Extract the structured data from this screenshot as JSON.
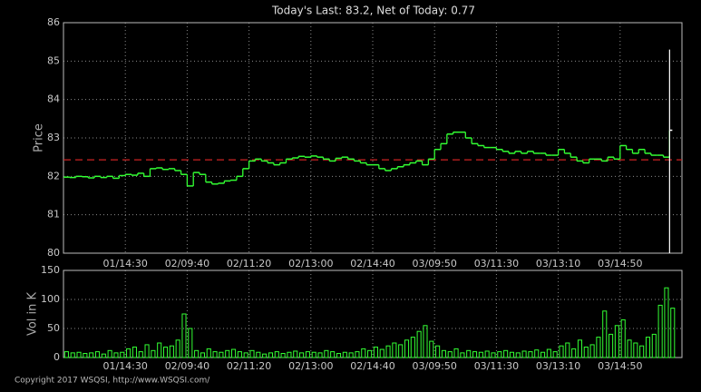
{
  "chart_data": [
    {
      "type": "step",
      "title": "Today's Last: 83.2,  Net of Today: 0.77",
      "ylabel": "Price",
      "ylim": [
        80,
        86
      ],
      "yticks": [
        80,
        81,
        82,
        83,
        84,
        85,
        86
      ],
      "xlim": [
        0,
        100
      ],
      "xticks": [
        {
          "value": 10,
          "label": "01/14:30"
        },
        {
          "value": 20,
          "label": "02/09:40"
        },
        {
          "value": 30,
          "label": "02/11:20"
        },
        {
          "value": 40,
          "label": "02/13:00"
        },
        {
          "value": 50,
          "label": "02/14:40"
        },
        {
          "value": 60,
          "label": "03/09:50"
        },
        {
          "value": 70,
          "label": "03/11:30"
        },
        {
          "value": 80,
          "label": "03/13:10"
        },
        {
          "value": 90,
          "label": "03/14:50"
        }
      ],
      "grid": true,
      "color": "#33ff33",
      "values": [
        81.98,
        81.97,
        82.0,
        81.99,
        81.96,
        82.0,
        81.97,
        82.0,
        81.95,
        82.02,
        82.05,
        82.03,
        82.08,
        82.0,
        82.2,
        82.22,
        82.18,
        82.2,
        82.15,
        82.05,
        81.75,
        82.1,
        82.05,
        81.85,
        81.8,
        81.82,
        81.88,
        81.9,
        82.0,
        82.2,
        82.4,
        82.45,
        82.4,
        82.35,
        82.3,
        82.35,
        82.45,
        82.48,
        82.52,
        82.5,
        82.53,
        82.5,
        82.45,
        82.4,
        82.47,
        82.5,
        82.45,
        82.4,
        82.35,
        82.3,
        82.3,
        82.2,
        82.15,
        82.2,
        82.25,
        82.3,
        82.35,
        82.4,
        82.3,
        82.45,
        82.7,
        82.85,
        83.1,
        83.15,
        83.15,
        83.0,
        82.85,
        82.8,
        82.75,
        82.75,
        82.7,
        82.65,
        82.6,
        82.65,
        82.6,
        82.65,
        82.6,
        82.6,
        82.55,
        82.55,
        82.7,
        82.6,
        82.5,
        82.4,
        82.35,
        82.45,
        82.45,
        82.4,
        82.5,
        82.45,
        82.8,
        82.7,
        82.6,
        82.7,
        82.6,
        82.55,
        82.55,
        82.5,
        83.2
      ],
      "last_range": {
        "low": 80.0,
        "high": 85.3
      },
      "reference_line": {
        "value": 82.43,
        "color": "#cc2222"
      }
    },
    {
      "type": "bar",
      "ylabel": "Vol in K",
      "ylim": [
        0,
        150
      ],
      "yticks": [
        0,
        50,
        100,
        150
      ],
      "xlim": [
        0,
        100
      ],
      "xticks": [
        {
          "value": 10,
          "label": "01/14:30"
        },
        {
          "value": 20,
          "label": "02/09:40"
        },
        {
          "value": 30,
          "label": "02/11:20"
        },
        {
          "value": 40,
          "label": "02/13:00"
        },
        {
          "value": 50,
          "label": "02/14:40"
        },
        {
          "value": 60,
          "label": "03/09:50"
        },
        {
          "value": 70,
          "label": "03/11:30"
        },
        {
          "value": 80,
          "label": "03/13:10"
        },
        {
          "value": 90,
          "label": "03/14:50"
        }
      ],
      "grid": true,
      "color": "#33ff33",
      "values": [
        10,
        8,
        9,
        7,
        8,
        10,
        6,
        12,
        8,
        9,
        15,
        18,
        10,
        22,
        12,
        25,
        18,
        20,
        30,
        75,
        50,
        12,
        8,
        15,
        10,
        9,
        12,
        14,
        10,
        8,
        12,
        9,
        6,
        8,
        10,
        7,
        9,
        11,
        8,
        10,
        9,
        8,
        12,
        10,
        7,
        9,
        8,
        10,
        15,
        12,
        18,
        14,
        20,
        25,
        22,
        30,
        35,
        45,
        55,
        28,
        20,
        12,
        10,
        15,
        8,
        12,
        10,
        9,
        11,
        8,
        10,
        12,
        9,
        8,
        11,
        10,
        13,
        9,
        14,
        10,
        20,
        25,
        15,
        30,
        18,
        22,
        35,
        80,
        40,
        55,
        65,
        30,
        25,
        20,
        35,
        40,
        90,
        120,
        85
      ]
    }
  ],
  "footer": "Copyright 2017 WSQSI, http://www.WSQSI.com/"
}
